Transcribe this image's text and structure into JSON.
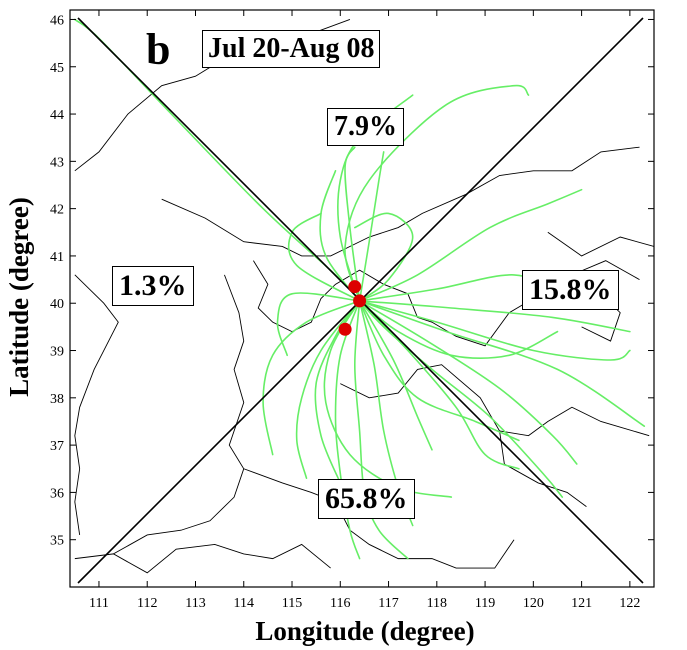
{
  "chart_data": {
    "type": "line",
    "panel_label": "b",
    "title": "Jul 20-Aug 08",
    "xlabel": "Longitude (degree)",
    "ylabel": "Latitude (degree)",
    "xlim": [
      110.4,
      122.5
    ],
    "ylim": [
      34.0,
      46.2
    ],
    "xticks": [
      111,
      112,
      113,
      114,
      115,
      116,
      117,
      118,
      119,
      120,
      121,
      122
    ],
    "yticks": [
      35,
      36,
      37,
      38,
      39,
      40,
      41,
      42,
      43,
      44,
      45,
      46
    ],
    "grid": false,
    "center": [
      116.4,
      40.05
    ],
    "sector_percentages": {
      "north": "7.9%",
      "east": "15.8%",
      "south": "65.8%",
      "west": "1.3%"
    },
    "sites": [
      {
        "lon": 116.3,
        "lat": 40.35
      },
      {
        "lon": 116.4,
        "lat": 40.05
      },
      {
        "lon": 116.1,
        "lat": 39.45
      }
    ],
    "colors": {
      "trajectory": "#66ee66",
      "site": "#dd0000",
      "divider": "#000000",
      "border": "#000000"
    },
    "trajectories": [
      [
        [
          116.4,
          40.05
        ],
        [
          115.9,
          40.6
        ],
        [
          114.4,
          42.0
        ],
        [
          112.5,
          44.0
        ],
        [
          111.0,
          45.6
        ],
        [
          110.5,
          46.0
        ]
      ],
      [
        [
          116.4,
          40.05
        ],
        [
          116.1,
          41.2
        ],
        [
          116.6,
          42.6
        ],
        [
          118.2,
          44.2
        ],
        [
          119.6,
          44.6
        ],
        [
          119.9,
          44.4
        ]
      ],
      [
        [
          116.4,
          40.05
        ],
        [
          116.0,
          41.4
        ],
        [
          116.0,
          42.6
        ],
        [
          116.4,
          43.5
        ],
        [
          117.5,
          44.4
        ]
      ],
      [
        [
          116.4,
          40.05
        ],
        [
          116.2,
          41.6
        ],
        [
          116.1,
          42.9
        ],
        [
          116.3,
          43.3
        ]
      ],
      [
        [
          116.4,
          40.05
        ],
        [
          115.7,
          41.0
        ],
        [
          115.6,
          41.9
        ],
        [
          115.9,
          42.8
        ]
      ],
      [
        [
          116.4,
          40.05
        ],
        [
          116.6,
          41.3
        ],
        [
          116.8,
          42.6
        ],
        [
          116.9,
          43.2
        ]
      ],
      [
        [
          116.4,
          40.05
        ],
        [
          115.1,
          40.8
        ],
        [
          115.0,
          41.5
        ],
        [
          115.6,
          41.9
        ]
      ],
      [
        [
          116.4,
          40.05
        ],
        [
          117.6,
          40.6
        ],
        [
          119.1,
          41.6
        ],
        [
          120.3,
          42.1
        ],
        [
          121.0,
          42.4
        ]
      ],
      [
        [
          116.4,
          40.05
        ],
        [
          118.0,
          40.3
        ],
        [
          119.6,
          40.6
        ],
        [
          120.6,
          40.2
        ]
      ],
      [
        [
          116.4,
          40.05
        ],
        [
          118.3,
          39.9
        ],
        [
          120.4,
          39.7
        ],
        [
          122.0,
          39.4
        ]
      ],
      [
        [
          116.4,
          40.05
        ],
        [
          118.0,
          39.6
        ],
        [
          120.0,
          39.0
        ],
        [
          121.6,
          38.8
        ],
        [
          122.0,
          39.0
        ]
      ],
      [
        [
          116.4,
          40.05
        ],
        [
          118.2,
          39.4
        ],
        [
          120.5,
          38.6
        ],
        [
          122.3,
          37.4
        ]
      ],
      [
        [
          116.4,
          40.05
        ],
        [
          117.8,
          39.2
        ],
        [
          119.3,
          38.2
        ],
        [
          120.4,
          37.2
        ],
        [
          120.9,
          36.6
        ]
      ],
      [
        [
          116.4,
          40.05
        ],
        [
          117.4,
          39.0
        ],
        [
          118.4,
          37.8
        ],
        [
          119.0,
          36.8
        ],
        [
          119.7,
          36.5
        ]
      ],
      [
        [
          116.4,
          40.05
        ],
        [
          117.1,
          38.8
        ],
        [
          117.6,
          37.6
        ],
        [
          117.9,
          36.9
        ]
      ],
      [
        [
          116.4,
          40.05
        ],
        [
          116.7,
          38.7
        ],
        [
          116.9,
          37.3
        ],
        [
          117.2,
          36.1
        ],
        [
          117.5,
          35.3
        ]
      ],
      [
        [
          116.4,
          40.05
        ],
        [
          116.3,
          38.7
        ],
        [
          116.4,
          37.3
        ],
        [
          116.5,
          36.0
        ],
        [
          116.8,
          35.2
        ],
        [
          117.4,
          34.6
        ]
      ],
      [
        [
          116.4,
          40.05
        ],
        [
          116.0,
          38.9
        ],
        [
          115.9,
          37.6
        ],
        [
          116.0,
          36.4
        ],
        [
          116.2,
          35.2
        ],
        [
          116.4,
          34.6
        ]
      ],
      [
        [
          116.4,
          40.05
        ],
        [
          115.6,
          39.0
        ],
        [
          115.2,
          38.0
        ],
        [
          115.1,
          37.1
        ],
        [
          115.3,
          36.3
        ]
      ],
      [
        [
          116.4,
          40.05
        ],
        [
          115.3,
          39.6
        ],
        [
          114.6,
          38.9
        ],
        [
          114.4,
          37.9
        ],
        [
          114.6,
          36.8
        ]
      ],
      [
        [
          116.4,
          40.05
        ],
        [
          115.0,
          40.2
        ],
        [
          114.7,
          39.6
        ],
        [
          114.9,
          38.9
        ]
      ],
      [
        [
          116.4,
          40.05
        ],
        [
          115.9,
          39.3
        ],
        [
          115.5,
          38.3
        ],
        [
          115.6,
          37.2
        ],
        [
          116.0,
          36.2
        ]
      ],
      [
        [
          116.4,
          40.05
        ],
        [
          116.9,
          38.9
        ],
        [
          117.6,
          38.0
        ],
        [
          118.8,
          37.5
        ],
        [
          119.7,
          37.1
        ]
      ],
      [
        [
          116.4,
          40.05
        ],
        [
          117.2,
          39.4
        ],
        [
          118.3,
          38.9
        ],
        [
          119.5,
          38.9
        ],
        [
          120.5,
          39.4
        ]
      ],
      [
        [
          116.4,
          40.05
        ],
        [
          117.0,
          40.5
        ],
        [
          117.5,
          41.4
        ],
        [
          117.0,
          41.9
        ],
        [
          116.3,
          41.6
        ]
      ],
      [
        [
          116.4,
          40.05
        ],
        [
          115.8,
          39.0
        ],
        [
          115.7,
          37.9
        ],
        [
          116.2,
          36.8
        ],
        [
          117.2,
          36.1
        ],
        [
          118.3,
          35.9
        ]
      ],
      [
        [
          116.4,
          40.05
        ],
        [
          116.9,
          39.5
        ],
        [
          117.9,
          38.6
        ],
        [
          119.1,
          37.6
        ],
        [
          120.2,
          36.4
        ],
        [
          120.6,
          35.9
        ]
      ]
    ]
  }
}
